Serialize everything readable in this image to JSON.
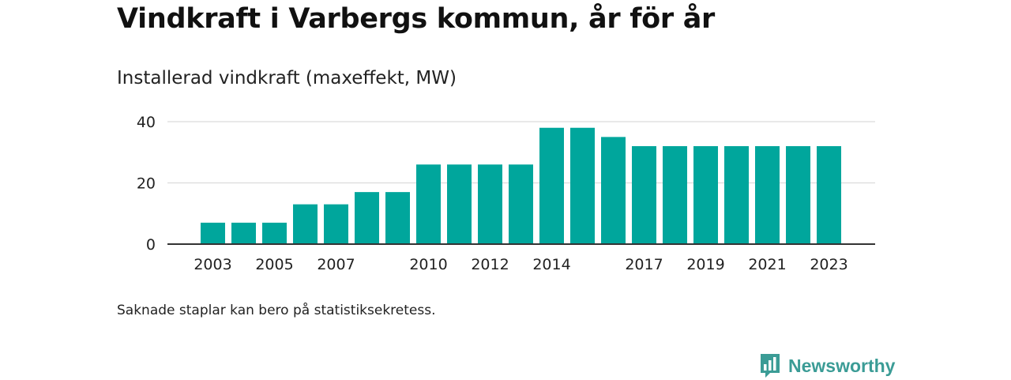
{
  "title": "Vindkraft i Varbergs kommun, år för år",
  "subtitle": "Installerad vindkraft (maxeffekt, MW)",
  "footnote": "Saknade staplar kan bero på statistiksekretess.",
  "brand": {
    "name": "Newsworthy",
    "icon": "newsworthy-logo-icon",
    "color": "#3b9c96"
  },
  "chart_data": {
    "type": "bar",
    "categories": [
      "2003",
      "2004",
      "2005",
      "2006",
      "2007",
      "2008",
      "2009",
      "2010",
      "2011",
      "2012",
      "2013",
      "2014",
      "2015",
      "2016",
      "2017",
      "2018",
      "2019",
      "2020",
      "2021",
      "2022",
      "2023"
    ],
    "values": [
      7,
      7,
      7,
      13,
      13,
      17,
      17,
      26,
      26,
      26,
      26,
      38,
      38,
      35,
      32,
      32,
      32,
      32,
      32,
      32,
      32
    ],
    "x_tick_labels": [
      "2003",
      "2005",
      "2007",
      "2010",
      "2012",
      "2014",
      "2017",
      "2019",
      "2021",
      "2023"
    ],
    "y_ticks": [
      0,
      20,
      40
    ],
    "ylim": [
      0,
      40
    ],
    "grid": true,
    "bar_color": "#00a69c",
    "xlabel": "",
    "ylabel": ""
  }
}
